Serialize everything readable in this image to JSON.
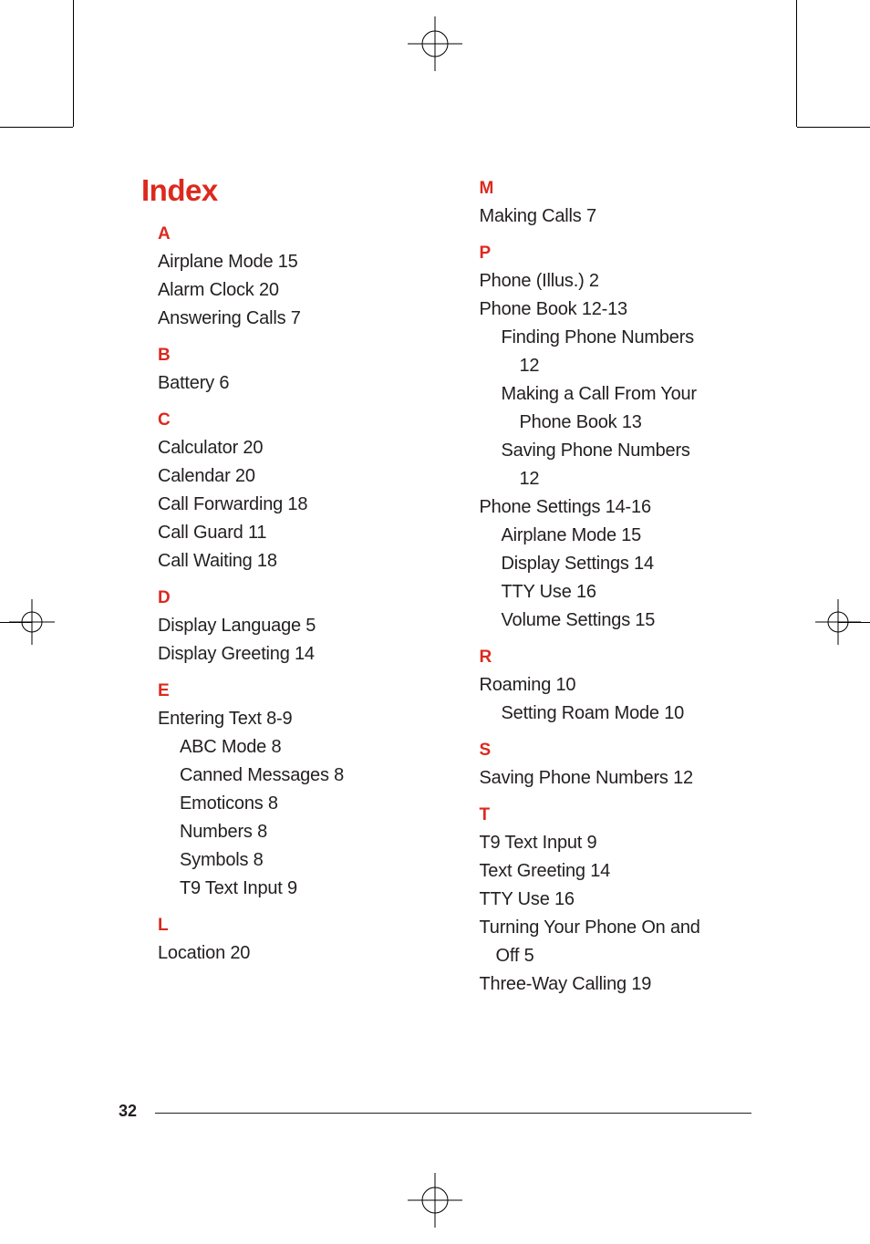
{
  "title": "Index",
  "page_number": "32",
  "colors": {
    "accent": "#dc291e",
    "text": "#231f20",
    "background": "#ffffff",
    "rule": "#000000"
  },
  "left_column": [
    {
      "type": "letter",
      "text": "A"
    },
    {
      "type": "entry",
      "text": "Airplane Mode  15"
    },
    {
      "type": "entry",
      "text": "Alarm Clock  20"
    },
    {
      "type": "entry",
      "text": "Answering Calls  7"
    },
    {
      "type": "letter",
      "text": "B"
    },
    {
      "type": "entry",
      "text": "Battery  6"
    },
    {
      "type": "letter",
      "text": "C"
    },
    {
      "type": "entry",
      "text": "Calculator  20"
    },
    {
      "type": "entry",
      "text": "Calendar  20"
    },
    {
      "type": "entry",
      "text": "Call Forwarding  18"
    },
    {
      "type": "entry",
      "text": "Call Guard  11"
    },
    {
      "type": "entry",
      "text": "Call Waiting  18"
    },
    {
      "type": "letter",
      "text": "D"
    },
    {
      "type": "entry",
      "text": "Display Language  5"
    },
    {
      "type": "entry",
      "text": "Display Greeting  14"
    },
    {
      "type": "letter",
      "text": "E"
    },
    {
      "type": "entry",
      "text": "Entering Text  8-9"
    },
    {
      "type": "sub",
      "text": "ABC Mode  8"
    },
    {
      "type": "sub",
      "text": "Canned Messages  8"
    },
    {
      "type": "sub",
      "text": "Emoticons  8"
    },
    {
      "type": "sub",
      "text": "Numbers  8"
    },
    {
      "type": "sub",
      "text": "Symbols  8"
    },
    {
      "type": "sub",
      "text": "T9 Text Input  9"
    },
    {
      "type": "letter",
      "text": "L"
    },
    {
      "type": "entry",
      "text": "Location  20"
    }
  ],
  "right_column": [
    {
      "type": "letter",
      "text": "M"
    },
    {
      "type": "entry",
      "text": "Making Calls  7"
    },
    {
      "type": "letter",
      "text": "P"
    },
    {
      "type": "entry",
      "text": "Phone (Illus.)  2"
    },
    {
      "type": "entry",
      "text": "Phone Book  12-13"
    },
    {
      "type": "subwrap",
      "line1": "Finding Phone Numbers",
      "line2": "12"
    },
    {
      "type": "subwrap",
      "line1": "Making a Call From Your",
      "line2": "Phone Book  13"
    },
    {
      "type": "subwrap",
      "line1": "Saving Phone Numbers",
      "line2": "12"
    },
    {
      "type": "entry",
      "text": "Phone Settings  14-16"
    },
    {
      "type": "sub",
      "text": "Airplane Mode  15"
    },
    {
      "type": "sub",
      "text": "Display Settings  14"
    },
    {
      "type": "sub",
      "text": "TTY Use  16"
    },
    {
      "type": "sub",
      "text": "Volume Settings  15"
    },
    {
      "type": "letter",
      "text": "R"
    },
    {
      "type": "entry",
      "text": "Roaming  10"
    },
    {
      "type": "sub",
      "text": "Setting Roam Mode  10"
    },
    {
      "type": "letter",
      "text": "S"
    },
    {
      "type": "entry",
      "text": "Saving Phone Numbers  12"
    },
    {
      "type": "letter",
      "text": "T"
    },
    {
      "type": "entry",
      "text": "T9 Text Input  9"
    },
    {
      "type": "entry",
      "text": "Text Greeting  14"
    },
    {
      "type": "entry",
      "text": "TTY Use  16"
    },
    {
      "type": "entrywrap",
      "line1": "Turning Your Phone On and",
      "line2": "Off  5"
    },
    {
      "type": "entry",
      "text": "Three-Way Calling  19"
    }
  ]
}
